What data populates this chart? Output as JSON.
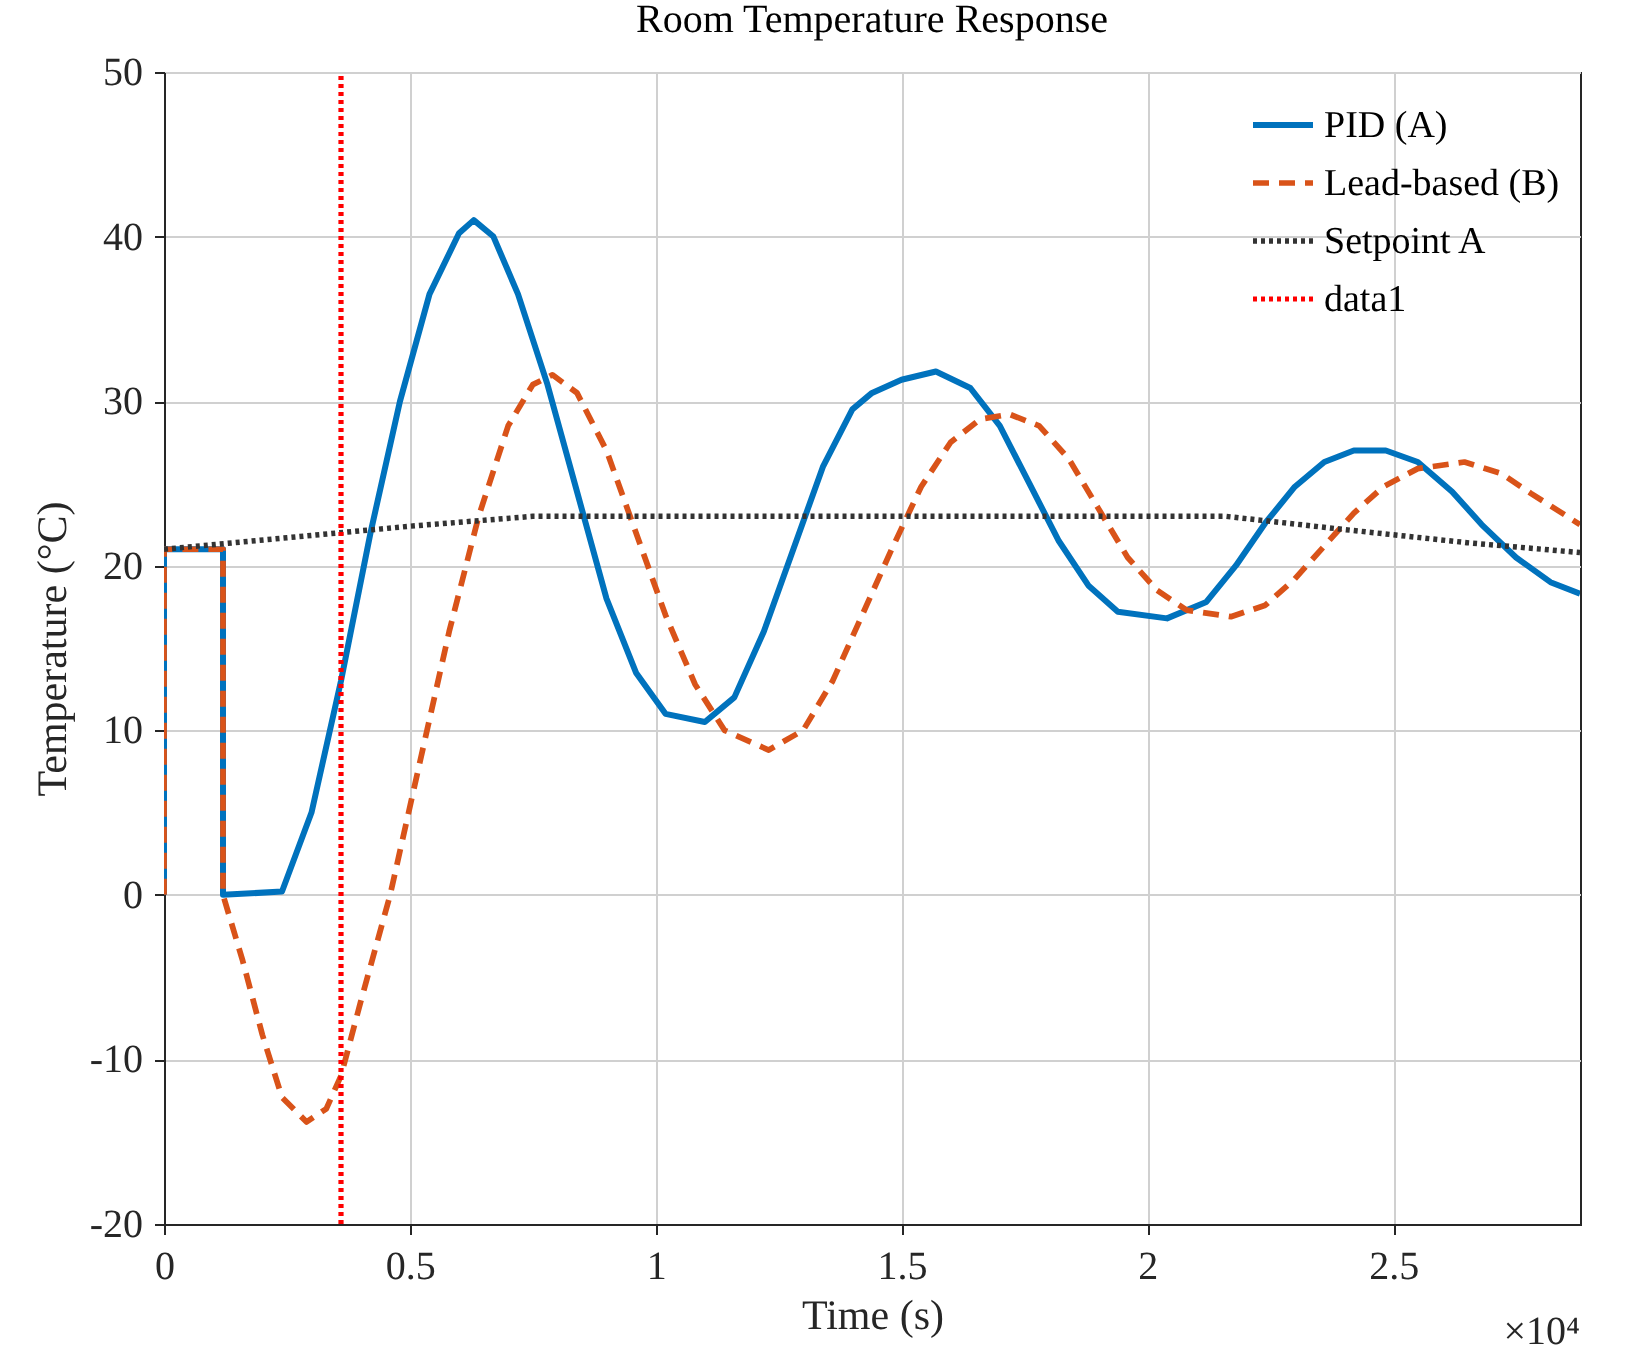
{
  "chart_data": {
    "type": "line",
    "title": "Room Temperature Response",
    "xlabel": "Time (s)",
    "ylabel": "Temperature (°C)",
    "xlim": [
      0,
      2.88
    ],
    "xticks": [
      0,
      0.5,
      1,
      1.5,
      2,
      2.5
    ],
    "ylim": [
      -20,
      50
    ],
    "yticks": [
      -20,
      -10,
      0,
      10,
      20,
      30,
      40,
      50
    ],
    "grid": true,
    "legend": "top right",
    "annotations": [
      "×10⁴"
    ],
    "series": [
      {
        "name": "PID (A)",
        "color": "#0072bd",
        "line_style": "solid",
        "x": [
          0,
          0,
          0.12,
          0.12,
          0.24,
          0.3,
          0.36,
          0.42,
          0.48,
          0.54,
          0.6,
          0.63,
          0.67,
          0.72,
          0.78,
          0.84,
          0.9,
          0.96,
          1.02,
          1.1,
          1.16,
          1.22,
          1.28,
          1.34,
          1.4,
          1.44,
          1.5,
          1.57,
          1.64,
          1.7,
          1.76,
          1.82,
          1.88,
          1.94,
          2.04,
          2.12,
          2.18,
          2.24,
          2.3,
          2.36,
          2.42,
          2.485,
          2.55,
          2.62,
          2.68,
          2.75,
          2.82,
          2.88
        ],
        "values": [
          0,
          21,
          21,
          0,
          0.2,
          5,
          13,
          22,
          30,
          36.5,
          40.2,
          41,
          40,
          36.5,
          31,
          24.5,
          18,
          13.5,
          11,
          10.5,
          12,
          16,
          21,
          26,
          29.5,
          30.5,
          31.3,
          31.8,
          30.8,
          28.5,
          25,
          21.5,
          18.8,
          17.2,
          16.8,
          17.8,
          20,
          22.6,
          24.8,
          26.3,
          27,
          27,
          26.3,
          24.5,
          22.5,
          20.5,
          19,
          18.3
        ]
      },
      {
        "name": "Lead-based (B)",
        "color": "#d95319",
        "line_style": "dashed",
        "x": [
          0,
          0,
          0.12,
          0.12,
          0.16,
          0.2,
          0.24,
          0.29,
          0.33,
          0.36,
          0.4,
          0.46,
          0.52,
          0.58,
          0.64,
          0.7,
          0.75,
          0.79,
          0.84,
          0.9,
          0.96,
          1.02,
          1.08,
          1.14,
          1.23,
          1.3,
          1.36,
          1.42,
          1.48,
          1.54,
          1.6,
          1.66,
          1.72,
          1.78,
          1.84,
          1.9,
          1.96,
          2.02,
          2.08,
          2.17,
          2.24,
          2.3,
          2.36,
          2.42,
          2.48,
          2.55,
          2.645,
          2.72,
          2.78,
          2.88
        ],
        "values": [
          0,
          21,
          21,
          0,
          -4,
          -8.5,
          -12.3,
          -13.8,
          -13,
          -11,
          -6.5,
          0,
          8,
          16,
          23,
          28.5,
          31,
          31.6,
          30.5,
          27,
          22,
          17,
          12.8,
          10,
          8.8,
          10,
          13,
          17,
          21,
          24.8,
          27.5,
          28.9,
          29.2,
          28.5,
          26.5,
          23.5,
          20.5,
          18.5,
          17.3,
          16.9,
          17.6,
          19.2,
          21.2,
          23.2,
          24.8,
          25.9,
          26.3,
          25.6,
          24.4,
          22.5
        ]
      },
      {
        "name": "Setpoint A",
        "color": "#333333",
        "line_style": "dotted",
        "x": [
          0,
          0.25,
          0.5,
          0.75,
          2.16,
          2.4,
          2.65,
          2.88
        ],
        "values": [
          21,
          21.7,
          22.4,
          23,
          23,
          22.2,
          21.4,
          20.8
        ]
      },
      {
        "name": "data1",
        "color": "#ff0000",
        "line_style": "dotted",
        "x": [
          0.36,
          0.36
        ],
        "values": [
          -20,
          50
        ]
      }
    ]
  }
}
